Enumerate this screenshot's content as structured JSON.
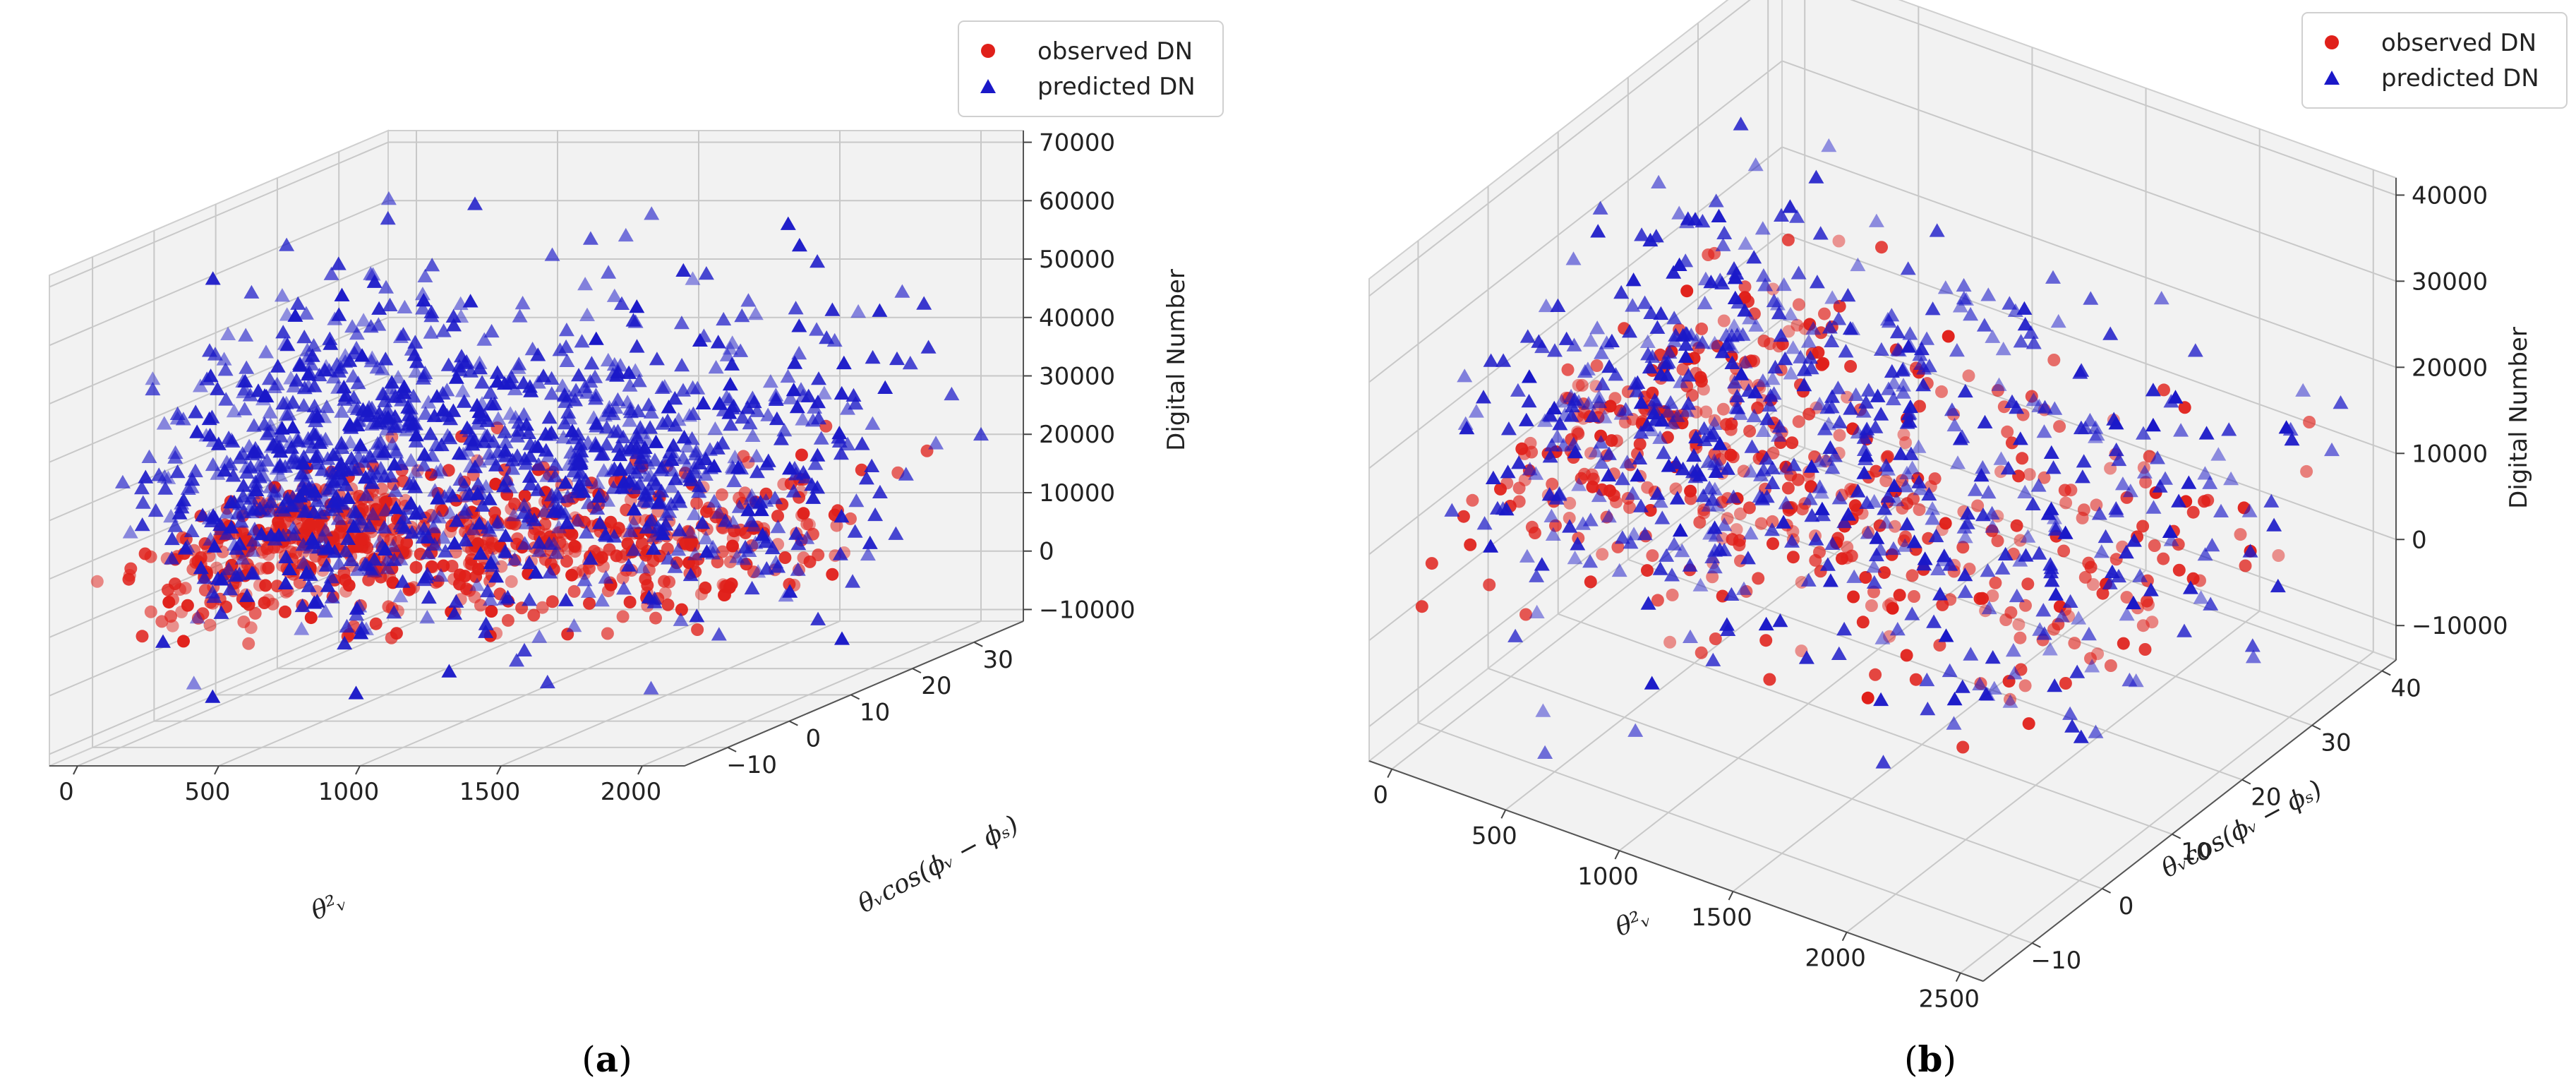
{
  "panels": [
    {
      "label_pre": "(",
      "label_letter": "a",
      "label_post": ")"
    },
    {
      "label_pre": "(",
      "label_letter": "b",
      "label_post": ")"
    }
  ],
  "legend": {
    "observed": "observed DN",
    "predicted": "predicted DN"
  },
  "colors": {
    "observed": "#e0201a",
    "predicted": "#1a18c8",
    "pane": "#f2f2f2",
    "grid": "#c8c8c8"
  },
  "chart_data": [
    {
      "type": "scatter",
      "projection": "3d",
      "xlabel": "θ²ᵥ",
      "ylabel": "θᵥcos(ϕᵥ − ϕₛ)",
      "zlabel": "Digital Number",
      "xlim": [
        -100,
        2150
      ],
      "ylim": [
        -17,
        38
      ],
      "zlim": [
        -12000,
        72000
      ],
      "xticks": [
        0,
        500,
        1000,
        1500,
        2000
      ],
      "yticks": [
        -10,
        0,
        10,
        20,
        30
      ],
      "zticks": [
        -10000,
        0,
        10000,
        20000,
        30000,
        40000,
        50000,
        60000,
        70000
      ],
      "legend_position": "top-right",
      "grid": true,
      "series": [
        {
          "name": "observed DN",
          "marker": "circle",
          "color": "#e0201a",
          "count": 700,
          "x_range": [
            0,
            2000
          ],
          "y_range": [
            -14,
            33
          ],
          "z_range": [
            4000,
            25000
          ]
        },
        {
          "name": "predicted DN",
          "marker": "triangle",
          "color": "#1a18c8",
          "count": 1200,
          "x_range": [
            0,
            2100
          ],
          "y_range": [
            -14,
            35
          ],
          "z_range": [
            -10000,
            66000
          ]
        }
      ]
    },
    {
      "type": "scatter",
      "projection": "3d",
      "xlabel": "θ²ᵥ",
      "ylabel": "θᵥcos(ϕᵥ − ϕₛ)",
      "zlabel": "Digital Number",
      "xlim": [
        -100,
        2600
      ],
      "ylim": [
        -17,
        42
      ],
      "zlim": [
        -14000,
        42000
      ],
      "xticks": [
        0,
        500,
        1000,
        1500,
        2000,
        2500
      ],
      "yticks": [
        -10,
        0,
        10,
        20,
        30,
        40
      ],
      "zticks": [
        -10000,
        0,
        10000,
        20000,
        30000,
        40000
      ],
      "legend_position": "top-right",
      "grid": true,
      "series": [
        {
          "name": "observed DN",
          "marker": "circle",
          "color": "#e0201a",
          "count": 450,
          "x_range": [
            0,
            2500
          ],
          "y_range": [
            -14,
            38
          ],
          "z_range": [
            2000,
            18000
          ]
        },
        {
          "name": "predicted DN",
          "marker": "triangle",
          "color": "#1a18c8",
          "count": 650,
          "x_range": [
            0,
            2500
          ],
          "y_range": [
            -14,
            40
          ],
          "z_range": [
            -12000,
            38000
          ]
        }
      ]
    }
  ]
}
